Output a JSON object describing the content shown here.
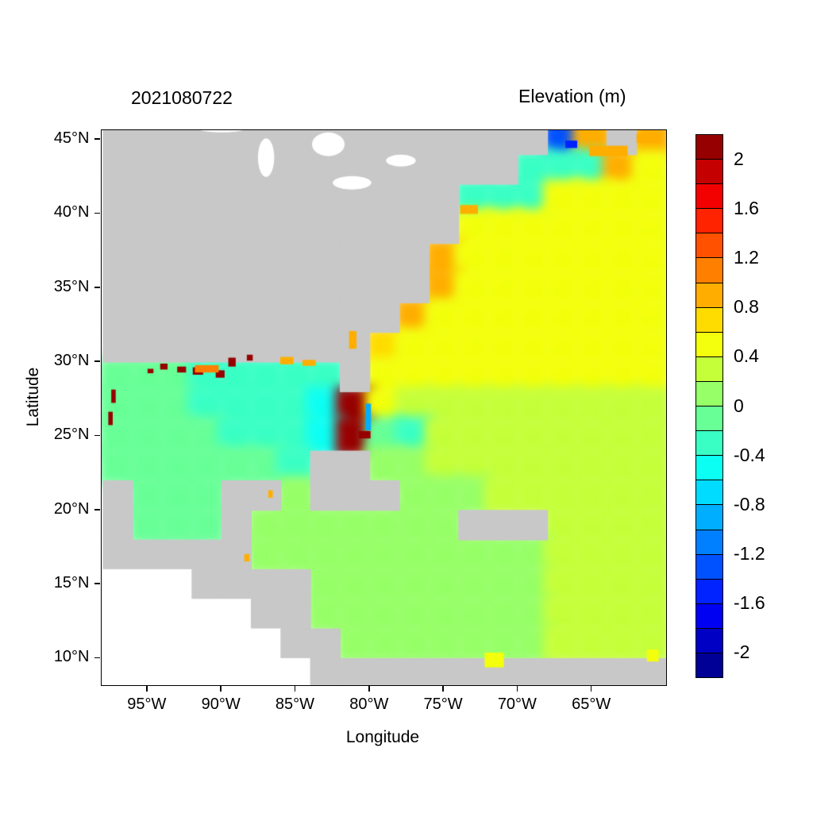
{
  "colors": {
    "land": "#c8c8c8",
    "outside_domain": "#ffffff",
    "frame": "#000000",
    "background": "#ffffff"
  },
  "chart_data": {
    "type": "heatmap",
    "title": "2021080722",
    "legend_title": "Elevation (m)",
    "xlabel": "Longitude",
    "ylabel": "Latitude",
    "units": "m",
    "lon_range": [
      -98.1,
      -60.0
    ],
    "lat_range": [
      8.2,
      45.65
    ],
    "x_ticks": [
      {
        "value": -95,
        "label": "95°W"
      },
      {
        "value": -90,
        "label": "90°W"
      },
      {
        "value": -85,
        "label": "85°W"
      },
      {
        "value": -80,
        "label": "80°W"
      },
      {
        "value": -75,
        "label": "75°W"
      },
      {
        "value": -70,
        "label": "70°W"
      },
      {
        "value": -65,
        "label": "65°W"
      }
    ],
    "y_ticks": [
      {
        "value": 45,
        "label": "45°N"
      },
      {
        "value": 40,
        "label": "40°N"
      },
      {
        "value": 35,
        "label": "35°N"
      },
      {
        "value": 30,
        "label": "30°N"
      },
      {
        "value": 25,
        "label": "25°N"
      },
      {
        "value": 20,
        "label": "20°N"
      },
      {
        "value": 15,
        "label": "15°N"
      },
      {
        "value": 10,
        "label": "10°N"
      }
    ],
    "colorbar": {
      "min": -2.2,
      "max": 2.2,
      "step": 0.2,
      "ticks": [
        {
          "value": 2,
          "label": "2"
        },
        {
          "value": 1.6,
          "label": "1.6"
        },
        {
          "value": 1.2,
          "label": "1.2"
        },
        {
          "value": 0.8,
          "label": "0.8"
        },
        {
          "value": 0.4,
          "label": "0.4"
        },
        {
          "value": 0,
          "label": "0"
        },
        {
          "value": -0.4,
          "label": "-0.4"
        },
        {
          "value": -0.8,
          "label": "-0.8"
        },
        {
          "value": -1.2,
          "label": "-1.2"
        },
        {
          "value": -1.6,
          "label": "-1.6"
        },
        {
          "value": -2,
          "label": "-2"
        }
      ]
    },
    "grid_origin_lon": -98,
    "grid_origin_lat": 46,
    "cell_size_deg": 2,
    "grid_legend": "rows north to south; value = sea surface elevation (m); L = land; W = outside model domain",
    "grid_rows_north_to_south": [
      [
        "L",
        "L",
        "L",
        "L",
        "L",
        "L",
        "L",
        "L",
        "L",
        "L",
        "L",
        "L",
        "L",
        "L",
        "L",
        -1.3,
        0.9,
        "L",
        0.8
      ],
      [
        "L",
        "L",
        "L",
        "L",
        "L",
        "L",
        "L",
        "L",
        "L",
        "L",
        "L",
        "L",
        "L",
        "L",
        -0.35,
        -0.3,
        -0.25,
        0.9,
        0.5
      ],
      [
        "L",
        "L",
        "L",
        "L",
        "L",
        "L",
        "L",
        "L",
        "L",
        "L",
        "L",
        "L",
        -0.25,
        -0.35,
        -0.3,
        0.45,
        0.5,
        0.5,
        0.5
      ],
      [
        "L",
        "L",
        "L",
        "L",
        "L",
        "L",
        "L",
        "L",
        "L",
        "L",
        "L",
        "L",
        0.55,
        0.5,
        0.5,
        0.5,
        0.5,
        0.5,
        0.5
      ],
      [
        "L",
        "L",
        "L",
        "L",
        "L",
        "L",
        "L",
        "L",
        "L",
        "L",
        "L",
        0.85,
        0.55,
        0.5,
        0.5,
        0.5,
        0.5,
        0.5,
        0.5
      ],
      [
        "L",
        "L",
        "L",
        "L",
        "L",
        "L",
        "L",
        "L",
        "L",
        "L",
        "L",
        0.9,
        0.55,
        0.5,
        0.5,
        0.5,
        0.5,
        0.5,
        0.5
      ],
      [
        "L",
        "L",
        "L",
        "L",
        "L",
        "L",
        "L",
        "L",
        "L",
        "L",
        0.85,
        0.55,
        0.5,
        0.5,
        0.5,
        0.5,
        0.5,
        0.5,
        0.5
      ],
      [
        "L",
        "L",
        "L",
        "L",
        "L",
        "L",
        "L",
        "L",
        "L",
        0.6,
        0.5,
        0.45,
        0.45,
        0.45,
        0.45,
        0.45,
        0.45,
        0.45,
        0.45
      ],
      [
        -0.1,
        -0.15,
        -0.2,
        -0.3,
        -0.35,
        -0.4,
        -0.35,
        -0.3,
        "L",
        0.45,
        0.45,
        0.45,
        0.45,
        0.45,
        0.45,
        0.45,
        0.45,
        0.45,
        0.45
      ],
      [
        -0.1,
        -0.15,
        -0.2,
        -0.25,
        -0.3,
        -0.35,
        -0.4,
        -0.45,
        2.1,
        0.4,
        0.35,
        0.35,
        0.35,
        0.35,
        0.35,
        0.35,
        0.35,
        0.35,
        0.35
      ],
      [
        -0.1,
        -0.1,
        -0.15,
        -0.2,
        -0.25,
        -0.25,
        -0.3,
        -0.5,
        2.1,
        -0.2,
        -0.3,
        0.25,
        0.3,
        0.3,
        0.3,
        0.3,
        0.3,
        0.3,
        0.3
      ],
      [
        -0.05,
        -0.1,
        -0.1,
        -0.15,
        -0.15,
        -0.2,
        -0.25,
        "L",
        "L",
        0.05,
        0.1,
        0.2,
        0.3,
        0.3,
        0.3,
        0.3,
        0.3,
        0.3,
        0.3
      ],
      [
        "L",
        -0.05,
        -0.1,
        -0.1,
        "L",
        "L",
        0.1,
        "L",
        "L",
        "L",
        0.1,
        0.15,
        0.15,
        0.3,
        0.3,
        0.3,
        0.3,
        0.3,
        0.3
      ],
      [
        "L",
        -0.05,
        -0.05,
        -0.05,
        "L",
        0.05,
        0.1,
        0.1,
        0.1,
        0.1,
        0.1,
        0.1,
        "L",
        "L",
        "L",
        0.2,
        0.25,
        0.25,
        0.25
      ],
      [
        "L",
        "L",
        "L",
        "L",
        "L",
        0.05,
        0.1,
        0.1,
        0.1,
        0.1,
        0.1,
        0.1,
        0.15,
        0.15,
        0.15,
        0.2,
        0.2,
        0.2,
        0.2
      ],
      [
        "W",
        "W",
        "W",
        "L",
        "L",
        "L",
        "L",
        0.1,
        0.1,
        0.1,
        0.1,
        0.15,
        0.15,
        0.15,
        0.15,
        0.2,
        0.2,
        0.2,
        0.2
      ],
      [
        "W",
        "W",
        "W",
        "W",
        "W",
        "L",
        "L",
        0.1,
        0.1,
        0.1,
        0.1,
        0.15,
        0.15,
        0.15,
        0.15,
        0.2,
        0.2,
        0.2,
        0.2
      ],
      [
        "W",
        "W",
        "W",
        "W",
        "W",
        "W",
        "L",
        "L",
        0.1,
        0.1,
        0.1,
        0.15,
        0.15,
        0.15,
        0.15,
        0.3,
        0.2,
        0.2,
        0.2
      ],
      [
        "W",
        "W",
        "W",
        "W",
        "W",
        "W",
        "W",
        "L",
        "L",
        "L",
        "L",
        "L",
        "L",
        "L",
        "L",
        "L",
        "L",
        "L",
        "L"
      ]
    ],
    "hotspots": [
      {
        "lon": -93.9,
        "lat": 29.7,
        "value": 2.1,
        "w": 0.5,
        "h": 0.4
      },
      {
        "lon": -92.7,
        "lat": 29.5,
        "value": 2.1,
        "w": 0.6,
        "h": 0.4
      },
      {
        "lon": -91.6,
        "lat": 29.4,
        "value": 2.1,
        "w": 0.7,
        "h": 0.5
      },
      {
        "lon": -90.1,
        "lat": 29.2,
        "value": 2.1,
        "w": 0.6,
        "h": 0.5
      },
      {
        "lon": -89.3,
        "lat": 30.0,
        "value": 2.1,
        "w": 0.5,
        "h": 0.6
      },
      {
        "lon": -88.1,
        "lat": 30.3,
        "value": 2.1,
        "w": 0.4,
        "h": 0.4
      },
      {
        "lon": -94.8,
        "lat": 29.4,
        "value": 2.1,
        "w": 0.4,
        "h": 0.3
      },
      {
        "lon": -97.3,
        "lat": 27.7,
        "value": 2.1,
        "w": 0.3,
        "h": 0.9
      },
      {
        "lon": -97.5,
        "lat": 26.2,
        "value": 2.1,
        "w": 0.3,
        "h": 0.9
      },
      {
        "lon": -91.0,
        "lat": 29.55,
        "value": 1.0,
        "w": 1.6,
        "h": 0.5
      },
      {
        "lon": -85.6,
        "lat": 30.1,
        "value": 0.9,
        "w": 0.9,
        "h": 0.5
      },
      {
        "lon": -84.1,
        "lat": 29.95,
        "value": 0.8,
        "w": 0.9,
        "h": 0.4
      },
      {
        "lon": -81.15,
        "lat": 31.5,
        "value": 0.8,
        "w": 0.5,
        "h": 1.2
      },
      {
        "lon": -80.1,
        "lat": 26.3,
        "value": -0.9,
        "w": 0.35,
        "h": 1.8
      },
      {
        "lon": -80.35,
        "lat": 25.1,
        "value": 2.1,
        "w": 0.8,
        "h": 0.5
      },
      {
        "lon": -73.3,
        "lat": 40.3,
        "value": 0.85,
        "w": 1.2,
        "h": 0.6
      },
      {
        "lon": -63.9,
        "lat": 44.25,
        "value": 0.95,
        "w": 2.6,
        "h": 0.7
      },
      {
        "lon": -61.2,
        "lat": 45.1,
        "value": 0.95,
        "w": 1.6,
        "h": 0.6
      },
      {
        "lon": -66.4,
        "lat": 44.7,
        "value": -1.6,
        "w": 0.8,
        "h": 0.5
      },
      {
        "lon": -88.3,
        "lat": 16.8,
        "value": 0.8,
        "w": 0.35,
        "h": 0.5
      },
      {
        "lon": -86.7,
        "lat": 21.1,
        "value": 0.9,
        "w": 0.3,
        "h": 0.5
      },
      {
        "lon": -71.6,
        "lat": 9.9,
        "value": 0.45,
        "w": 1.3,
        "h": 1.0
      },
      {
        "lon": -60.9,
        "lat": 10.2,
        "value": 0.5,
        "w": 0.8,
        "h": 0.8
      }
    ],
    "lakes": [
      {
        "lon": -90.0,
        "lat": 46.3,
        "w": 5.0,
        "h": 1.6
      },
      {
        "lon": -87.0,
        "lat": 43.8,
        "w": 1.1,
        "h": 2.6
      },
      {
        "lon": -82.8,
        "lat": 44.7,
        "w": 2.2,
        "h": 1.6
      },
      {
        "lon": -81.2,
        "lat": 42.1,
        "w": 2.6,
        "h": 0.9
      },
      {
        "lon": -77.9,
        "lat": 43.6,
        "w": 2.0,
        "h": 0.8
      }
    ]
  }
}
